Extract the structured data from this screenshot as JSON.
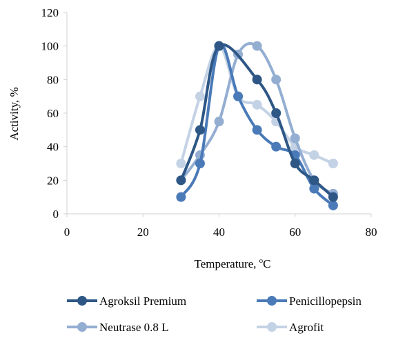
{
  "chart_data": {
    "type": "line",
    "title": "",
    "xlabel_main": "Temperature, ",
    "xlabel_sup": "o",
    "xlabel_tail": "C",
    "ylabel": "Activity, %",
    "xlim": [
      0,
      80
    ],
    "ylim": [
      0,
      120
    ],
    "xticks": [
      0,
      20,
      40,
      60,
      80
    ],
    "yticks": [
      0,
      20,
      40,
      60,
      80,
      100,
      120
    ],
    "grid": false,
    "smooth": true,
    "legend_position": "bottom",
    "series": [
      {
        "name": "Agroksil Premium",
        "color": "#2e5786",
        "x": [
          30,
          35,
          40,
          50,
          55,
          60,
          65,
          70
        ],
        "y": [
          20,
          50,
          100,
          80,
          60,
          30,
          20,
          10
        ]
      },
      {
        "name": "Penicillopepsin",
        "color": "#4a7ab8",
        "x": [
          30,
          35,
          40,
          45,
          50,
          55,
          60,
          65,
          70
        ],
        "y": [
          10,
          30,
          100,
          70,
          50,
          40,
          35,
          15,
          5
        ]
      },
      {
        "name": "Neutrase 0.8 L",
        "color": "#94aed2",
        "x": [
          30,
          35,
          40,
          45,
          50,
          55,
          60,
          65,
          70
        ],
        "y": [
          20,
          35,
          55,
          95,
          100,
          80,
          45,
          20,
          12
        ]
      },
      {
        "name": "Agrofit",
        "color": "#c4d2e5",
        "x": [
          30,
          35,
          40,
          45,
          50,
          55,
          60,
          65,
          70
        ],
        "y": [
          30,
          70,
          100,
          70,
          65,
          55,
          40,
          35,
          30
        ]
      }
    ]
  }
}
